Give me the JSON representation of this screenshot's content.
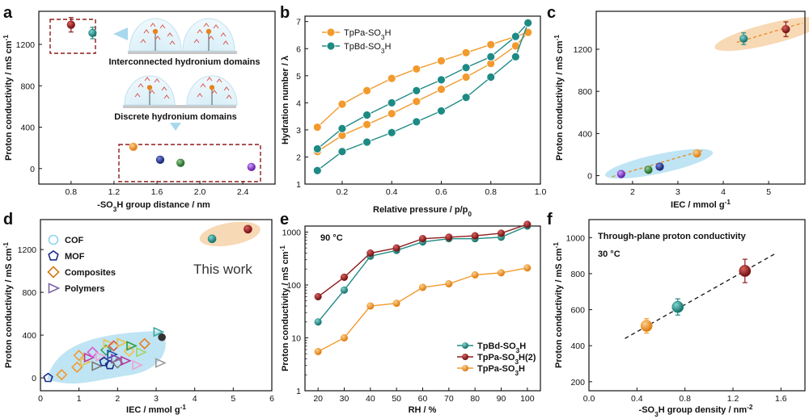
{
  "colors": {
    "maroon": "#8e1b1b",
    "teal": "#1e8a84",
    "orange": "#f29a2e",
    "navy": "#1a2a86",
    "green": "#2e7d32",
    "purple": "#7b2cc9",
    "dashbox": "#8e1b1b",
    "arrow": "#a8d8ee",
    "blueBlob": "#bfe4f4",
    "orangeBlob": "#f8d9b5",
    "orangeLine": "#e88a1e"
  },
  "chart_data": [
    {
      "panel": "a",
      "type": "scatter",
      "xlabel": "-SO3H group distance / nm",
      "ylabel": "Proton conductivity / mS cm-1",
      "xlim": [
        0.5,
        2.7
      ],
      "ylim": [
        -150,
        1520
      ],
      "xticks": [
        "0.8",
        "1.2",
        "1.6",
        "2.0",
        "2.4"
      ],
      "xtick_values": [
        0.8,
        1.2,
        1.6,
        2.0,
        2.4
      ],
      "yticks": [
        "0",
        "400",
        "800",
        "1200"
      ],
      "ytick_values": [
        0,
        400,
        800,
        1200
      ],
      "points": [
        {
          "x": 0.8,
          "y": 1390,
          "err": 70,
          "color": "maroon"
        },
        {
          "x": 1.0,
          "y": 1310,
          "err": 55,
          "color": "teal"
        },
        {
          "x": 1.38,
          "y": 210,
          "err": 20,
          "color": "orange"
        },
        {
          "x": 1.63,
          "y": 85,
          "err": 10,
          "color": "navy"
        },
        {
          "x": 1.82,
          "y": 55,
          "err": 10,
          "color": "green"
        },
        {
          "x": 2.48,
          "y": 15,
          "err": 10,
          "color": "purple"
        }
      ],
      "annotations": [
        "Interconnected hydronium domains",
        "Discrete  hydronium domains"
      ]
    },
    {
      "panel": "b",
      "type": "line",
      "xlabel": "Relative pressure / p/p0",
      "ylabel": "Hydration number / λ",
      "xlim": [
        0.05,
        1.0
      ],
      "ylim": [
        1,
        7.2
      ],
      "xticks": [
        "0.2",
        "0.4",
        "0.6",
        "0.8",
        "1.0"
      ],
      "xtick_values": [
        0.2,
        0.4,
        0.6,
        0.8,
        1.0
      ],
      "yticks": [
        "1",
        "2",
        "3",
        "4",
        "5",
        "6",
        "7"
      ],
      "ytick_values": [
        1,
        2,
        3,
        4,
        5,
        6,
        7
      ],
      "series": [
        {
          "name": "TpPa-SO3H",
          "color": "orange",
          "adsorption_x": [
            0.1,
            0.2,
            0.3,
            0.4,
            0.5,
            0.6,
            0.7,
            0.8,
            0.9,
            0.95
          ],
          "adsorption_y": [
            2.2,
            2.8,
            3.2,
            3.6,
            4.05,
            4.5,
            4.95,
            5.45,
            6.1,
            6.6
          ],
          "desorption_x": [
            0.1,
            0.2,
            0.3,
            0.4,
            0.5,
            0.6,
            0.7,
            0.8,
            0.9,
            0.95
          ],
          "desorption_y": [
            3.1,
            3.95,
            4.45,
            4.9,
            5.25,
            5.55,
            5.85,
            6.15,
            6.45,
            6.6
          ]
        },
        {
          "name": "TpBd-SO3H",
          "color": "teal",
          "adsorption_x": [
            0.1,
            0.2,
            0.3,
            0.4,
            0.5,
            0.6,
            0.7,
            0.8,
            0.9,
            0.95
          ],
          "adsorption_y": [
            1.5,
            2.2,
            2.55,
            2.9,
            3.3,
            3.7,
            4.2,
            4.95,
            5.7,
            6.95
          ],
          "desorption_x": [
            0.1,
            0.2,
            0.3,
            0.4,
            0.5,
            0.6,
            0.7,
            0.8,
            0.9,
            0.95
          ],
          "desorption_y": [
            2.3,
            3.05,
            3.55,
            4.0,
            4.45,
            4.85,
            5.3,
            5.7,
            6.45,
            6.95
          ]
        }
      ]
    },
    {
      "panel": "c",
      "type": "scatter",
      "xlabel": "IEC / mmol g-1",
      "ylabel": "Proton conductivity / mS cm-1",
      "xlim": [
        1.2,
        5.8
      ],
      "ylim": [
        -80,
        1560
      ],
      "xticks": [
        "2",
        "3",
        "4",
        "5"
      ],
      "xtick_values": [
        2,
        3,
        4,
        5
      ],
      "yticks": [
        "0",
        "400",
        "800",
        "1200"
      ],
      "ytick_values": [
        0,
        400,
        800,
        1200
      ],
      "points": [
        {
          "x": 1.75,
          "y": 15,
          "err": 10,
          "color": "purple"
        },
        {
          "x": 2.35,
          "y": 55,
          "err": 15,
          "color": "green"
        },
        {
          "x": 2.6,
          "y": 85,
          "err": 12,
          "color": "navy"
        },
        {
          "x": 3.42,
          "y": 210,
          "err": 25,
          "color": "orange"
        },
        {
          "x": 4.45,
          "y": 1300,
          "err": 55,
          "color": "teal"
        },
        {
          "x": 5.38,
          "y": 1390,
          "err": 70,
          "color": "maroon"
        }
      ]
    },
    {
      "panel": "d",
      "type": "scatter",
      "xlabel": "IEC / mmol g-1",
      "ylabel": "Proton conductivity / mS cm-1",
      "xlim": [
        0,
        6
      ],
      "ylim": [
        -120,
        1480
      ],
      "xticks": [
        "0",
        "1",
        "2",
        "3",
        "4",
        "5",
        "6"
      ],
      "xtick_values": [
        0,
        1,
        2,
        3,
        4,
        5,
        6
      ],
      "yticks": [
        "0",
        "400",
        "800",
        "1200"
      ],
      "ytick_values": [
        0,
        400,
        800,
        1200
      ],
      "legend": [
        "COF",
        "MOF",
        "Composites",
        "Polymers"
      ],
      "annotation": "This work",
      "this_work": [
        {
          "x": 4.45,
          "y": 1300,
          "color": "teal"
        },
        {
          "x": 5.38,
          "y": 1390,
          "color": "maroon"
        }
      ],
      "literature": [
        {
          "x": 0.2,
          "y": 0,
          "marker": "pentagon",
          "color": "navy"
        },
        {
          "x": 0.55,
          "y": 30,
          "marker": "diamond",
          "color": "orange"
        },
        {
          "x": 0.95,
          "y": 100,
          "marker": "diamond",
          "color": "orange"
        },
        {
          "x": 1.0,
          "y": 210,
          "marker": "diamond",
          "color": "orange"
        },
        {
          "x": 1.15,
          "y": 150,
          "marker": "triangle",
          "color": "#e6c34a"
        },
        {
          "x": 1.25,
          "y": 190,
          "marker": "triangle",
          "color": "#c0399f"
        },
        {
          "x": 1.35,
          "y": 240,
          "marker": "diamond",
          "color": "#d95bd3"
        },
        {
          "x": 1.45,
          "y": 110,
          "marker": "triangle",
          "color": "#7a7a7a"
        },
        {
          "x": 1.55,
          "y": 200,
          "marker": "triangle",
          "color": "#f0a0d0"
        },
        {
          "x": 1.65,
          "y": 150,
          "marker": "pentagon",
          "color": "navy"
        },
        {
          "x": 1.7,
          "y": 260,
          "marker": "diamond",
          "color": "#3aa75a"
        },
        {
          "x": 1.75,
          "y": 320,
          "marker": "triangle",
          "color": "#e6c34a"
        },
        {
          "x": 1.8,
          "y": 120,
          "marker": "pentagon",
          "color": "navy"
        },
        {
          "x": 1.85,
          "y": 220,
          "marker": "triangle",
          "color": "#1e4ea8"
        },
        {
          "x": 1.9,
          "y": 300,
          "marker": "diamond",
          "color": "#d9534f"
        },
        {
          "x": 1.95,
          "y": 180,
          "marker": "triangle",
          "color": "#8e44ad"
        },
        {
          "x": 2.0,
          "y": 140,
          "marker": "diamond",
          "color": "#7a7a7a"
        },
        {
          "x": 2.1,
          "y": 330,
          "marker": "triangle",
          "color": "#e6c34a"
        },
        {
          "x": 2.2,
          "y": 160,
          "marker": "triangle",
          "color": "#c0399f"
        },
        {
          "x": 2.3,
          "y": 250,
          "marker": "diamond",
          "color": "#f2c14e"
        },
        {
          "x": 2.35,
          "y": 300,
          "marker": "triangle",
          "color": "#2e9e3e"
        },
        {
          "x": 2.5,
          "y": 120,
          "marker": "triangle",
          "color": "#f0a0d0"
        },
        {
          "x": 2.6,
          "y": 240,
          "marker": "triangle",
          "color": "#a0d468"
        },
        {
          "x": 2.7,
          "y": 320,
          "marker": "diamond",
          "color": "#e67e22"
        },
        {
          "x": 3.05,
          "y": 430,
          "marker": "triangle",
          "color": "#3aa7a0"
        },
        {
          "x": 3.1,
          "y": 140,
          "marker": "triangle",
          "color": "#999999"
        },
        {
          "x": 3.15,
          "y": 380,
          "marker": "circle",
          "color": "#333333"
        }
      ]
    },
    {
      "panel": "e",
      "type": "line",
      "yscale": "log",
      "xlabel": "RH / %",
      "ylabel": "Proton conductivity / mS cm-1",
      "xlim": [
        15,
        105
      ],
      "ylim": [
        1,
        1300
      ],
      "xticks": [
        "20",
        "30",
        "40",
        "50",
        "60",
        "70",
        "80",
        "90",
        "100"
      ],
      "xtick_values": [
        20,
        30,
        40,
        50,
        60,
        70,
        80,
        90,
        100
      ],
      "yticks": [
        "1",
        "10",
        "100",
        "1000"
      ],
      "ytick_values": [
        1,
        10,
        100,
        1000
      ],
      "annotation": "90 °C",
      "categories": [
        20,
        30,
        40,
        50,
        60,
        70,
        80,
        90,
        100
      ],
      "series": [
        {
          "name": "TpBd-SO3H",
          "color": "teal",
          "values": [
            20,
            80,
            350,
            450,
            650,
            750,
            750,
            800,
            1300
          ]
        },
        {
          "name": "TpPa-SO3H(2)",
          "color": "maroon",
          "values": [
            60,
            140,
            400,
            500,
            750,
            800,
            850,
            950,
            1400
          ]
        },
        {
          "name": "TpPa-SO3H",
          "color": "orange",
          "values": [
            5.5,
            10,
            40,
            45,
            90,
            105,
            155,
            170,
            210
          ]
        }
      ]
    },
    {
      "panel": "f",
      "type": "scatter",
      "xlabel": "-SO3H group density /  nm-2",
      "ylabel": "Proton conductivity / mS cm-1",
      "xlim": [
        0,
        1.8
      ],
      "ylim": [
        150,
        1100
      ],
      "xticks": [
        "0.0",
        "0.4",
        "0.8",
        "1.2",
        "1.6"
      ],
      "xtick_values": [
        0.0,
        0.4,
        0.8,
        1.2,
        1.6
      ],
      "yticks": [
        "200",
        "400",
        "600",
        "800",
        "1000"
      ],
      "ytick_values": [
        200,
        400,
        600,
        800,
        1000
      ],
      "annotation_title": "Through-plane proton conductivity",
      "annotation_temp": "30 °C",
      "points": [
        {
          "x": 0.48,
          "y": 510,
          "err": 40,
          "color": "orange"
        },
        {
          "x": 0.74,
          "y": 615,
          "err": 45,
          "color": "teal"
        },
        {
          "x": 1.3,
          "y": 815,
          "err": 65,
          "color": "maroon"
        }
      ],
      "fit_line": {
        "x": [
          0.3,
          1.55
        ],
        "y": [
          440,
          910
        ]
      }
    }
  ],
  "labels": {
    "a": "a",
    "b": "b",
    "c": "c",
    "d": "d",
    "e": "e",
    "f": "f"
  }
}
